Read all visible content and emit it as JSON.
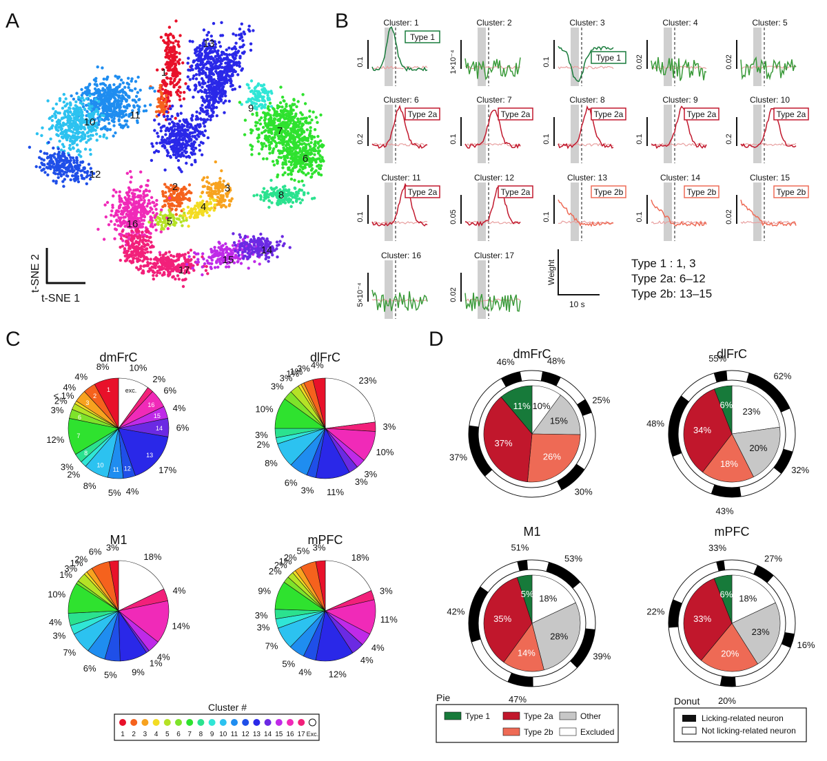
{
  "colors": {
    "clusters": [
      "#e8112a",
      "#f5621d",
      "#f7a21f",
      "#f3dc23",
      "#b5e226",
      "#7ee32a",
      "#2fe22f",
      "#2be28f",
      "#30e6d6",
      "#2cc2f0",
      "#1f8df0",
      "#1f4fe8",
      "#2a28e8",
      "#6b2ae3",
      "#bf2ae8",
      "#f02ab8",
      "#f2207a"
    ],
    "type1": "#177a3a",
    "type2a": "#c1172c",
    "type2b": "#ee6a55",
    "other": "#c7c7c7",
    "excluded": "#ffffff",
    "licking": "#000000"
  },
  "panel_labels": {
    "a": "A",
    "b": "B",
    "c": "C",
    "d": "D"
  },
  "tsne": {
    "axis_y": "t-SNE 2",
    "axis_x": "t-SNE 1",
    "cluster_labels": [
      "1",
      "2",
      "3",
      "4",
      "5",
      "6",
      "7",
      "8",
      "9",
      "10",
      "11",
      "12",
      "13",
      "14",
      "15",
      "16",
      "17"
    ]
  },
  "traces": {
    "cluster_titles": [
      "Cluster: 1",
      "Cluster: 2",
      "Cluster: 3",
      "Cluster: 4",
      "Cluster: 5",
      "Cluster: 6",
      "Cluster: 7",
      "Cluster: 8",
      "Cluster: 9",
      "Cluster: 10",
      "Cluster: 11",
      "Cluster: 12",
      "Cluster: 13",
      "Cluster: 14",
      "Cluster: 15",
      "Cluster: 16",
      "Cluster: 17"
    ],
    "scales": [
      "0.1",
      "1×10⁻⁴",
      "0.1",
      "0.02",
      "0.02",
      "0.2",
      "0.1",
      "0.1",
      "0.1",
      "0.2",
      "0.1",
      "0.05",
      "0.1",
      "0.1",
      "0.02",
      "5×10⁻⁴",
      "0.02"
    ],
    "type_boxes": [
      "Type 1",
      "",
      "Type 1",
      "",
      "",
      "Type 2a",
      "Type 2a",
      "Type 2a",
      "Type 2a",
      "Type 2a",
      "Type 2a",
      "Type 2a",
      "Type 2b",
      "Type 2b",
      "Type 2b",
      "",
      ""
    ],
    "legend_weight": "Weight",
    "legend_time": "10 s",
    "summary": [
      "Type 1   : 1, 3",
      "Type 2a: 6–12",
      "Type 2b: 13–15"
    ]
  },
  "chart_data": [
    {
      "type": "pie",
      "title": "dmFrC",
      "categories": [
        "exc",
        "1",
        "2",
        "3",
        "4",
        "5",
        "6",
        "7",
        "8",
        "9",
        "10",
        "11",
        "12",
        "13",
        "14",
        "15",
        "16",
        "17"
      ],
      "values": [
        10,
        8,
        4,
        4,
        1,
        2,
        3,
        12,
        3,
        2,
        8,
        5,
        4,
        17,
        6,
        4,
        6,
        2
      ],
      "labels": [
        "10%",
        "8%",
        "4%",
        "4%",
        "< 1%",
        "2%",
        "3%",
        "12%",
        "3%",
        "2%",
        "8%",
        "5%",
        "4%",
        "17%",
        "6%",
        "4%",
        "6%",
        "2%"
      ],
      "inner_labels": [
        "exc.",
        "1",
        "2",
        "3",
        "",
        "",
        "6",
        "7",
        "8",
        "9",
        "10",
        "11",
        "12",
        "13",
        "14",
        "15",
        "16",
        "17"
      ]
    },
    {
      "type": "pie",
      "title": "dlFrC",
      "categories": [
        "exc",
        "1",
        "2",
        "3",
        "4",
        "5",
        "6",
        "7",
        "8",
        "9",
        "10",
        "11",
        "12",
        "13",
        "14",
        "15",
        "16",
        "17"
      ],
      "values": [
        23,
        4,
        3,
        1,
        1,
        3,
        3,
        10,
        3,
        2,
        8,
        6,
        3,
        11,
        3,
        3,
        10,
        3
      ],
      "labels": [
        "23%",
        "4%",
        "3%",
        "1%",
        "1%",
        "3%",
        "3%",
        "10%",
        "3%",
        "2%",
        "8%",
        "6%",
        "3%",
        "11%",
        "3%",
        "3%",
        "10%",
        "3%"
      ]
    },
    {
      "type": "pie",
      "title": "M1",
      "categories": [
        "exc",
        "1",
        "2",
        "3",
        "4",
        "5",
        "6",
        "7",
        "8",
        "9",
        "10",
        "11",
        "12",
        "13",
        "14",
        "15",
        "16",
        "17"
      ],
      "values": [
        18,
        3,
        6,
        2,
        1,
        3,
        1,
        10,
        4,
        3,
        7,
        6,
        5,
        9,
        1,
        4,
        14,
        4
      ],
      "labels": [
        "18%",
        "3%",
        "6%",
        "2%",
        "1%",
        "3%",
        "1%",
        "10%",
        "4%",
        "3%",
        "7%",
        "6%",
        "5%",
        "9%",
        "1%",
        "4%",
        "14%",
        "4%"
      ]
    },
    {
      "type": "pie",
      "title": "mPFC",
      "categories": [
        "exc",
        "1",
        "2",
        "3",
        "4",
        "5",
        "6",
        "7",
        "8",
        "9",
        "10",
        "11",
        "12",
        "13",
        "14",
        "15",
        "16",
        "17"
      ],
      "values": [
        18,
        3,
        5,
        2,
        1,
        2,
        2,
        9,
        3,
        3,
        7,
        5,
        4,
        12,
        4,
        4,
        11,
        3
      ],
      "labels": [
        "18%",
        "3%",
        "5%",
        "2%",
        "1%",
        "2%",
        "2%",
        "9%",
        "3%",
        "3%",
        "7%",
        "5%",
        "4%",
        "12%",
        "4%",
        "4%",
        "11%",
        "3%"
      ]
    },
    {
      "type": "pie",
      "title": "dmFrC",
      "categories": [
        "Excluded",
        "Other",
        "Type 2b",
        "Type 2a",
        "Type 1"
      ],
      "values": [
        10,
        15,
        26,
        37,
        11
      ],
      "labels": [
        "10%",
        "15%",
        "26%",
        "37%",
        "11%"
      ],
      "donut_licking_percent": [
        "48%",
        "25%",
        "30%",
        "37%",
        "46%"
      ]
    },
    {
      "type": "pie",
      "title": "dlFrC",
      "categories": [
        "Excluded",
        "Other",
        "Type 2b",
        "Type 2a",
        "Type 1"
      ],
      "values": [
        23,
        20,
        18,
        34,
        6
      ],
      "labels": [
        "23%",
        "20%",
        "18%",
        "34%",
        "6%"
      ],
      "donut_licking_percent": [
        "62%",
        "32%",
        "43%",
        "48%",
        "55%"
      ]
    },
    {
      "type": "pie",
      "title": "M1",
      "categories": [
        "Excluded",
        "Other",
        "Type 2b",
        "Type 2a",
        "Type 1"
      ],
      "values": [
        18,
        28,
        14,
        35,
        5
      ],
      "labels": [
        "18%",
        "28%",
        "14%",
        "35%",
        "5%"
      ],
      "donut_licking_percent": [
        "53%",
        "39%",
        "47%",
        "42%",
        "51%"
      ]
    },
    {
      "type": "pie",
      "title": "mPFC",
      "categories": [
        "Excluded",
        "Other",
        "Type 2b",
        "Type 2a",
        "Type 1"
      ],
      "values": [
        18,
        23,
        20,
        33,
        6
      ],
      "labels": [
        "18%",
        "23%",
        "20%",
        "33%",
        "6%"
      ],
      "donut_licking_percent": [
        "27%",
        "16%",
        "20%",
        "22%",
        "33%"
      ]
    }
  ],
  "legend_c": {
    "title": "Cluster #",
    "items": [
      "1",
      "2",
      "3",
      "4",
      "5",
      "6",
      "7",
      "8",
      "9",
      "10",
      "11",
      "12",
      "13",
      "14",
      "15",
      "16",
      "17",
      "Exc."
    ]
  },
  "legend_pie": {
    "title": "Pie",
    "items": [
      "Type 1",
      "Type 2a",
      "Other",
      "Type 2b",
      "Excluded"
    ]
  },
  "legend_donut": {
    "title": "Donut",
    "items": [
      "Licking-related neuron",
      "Not licking-related neuron"
    ]
  }
}
